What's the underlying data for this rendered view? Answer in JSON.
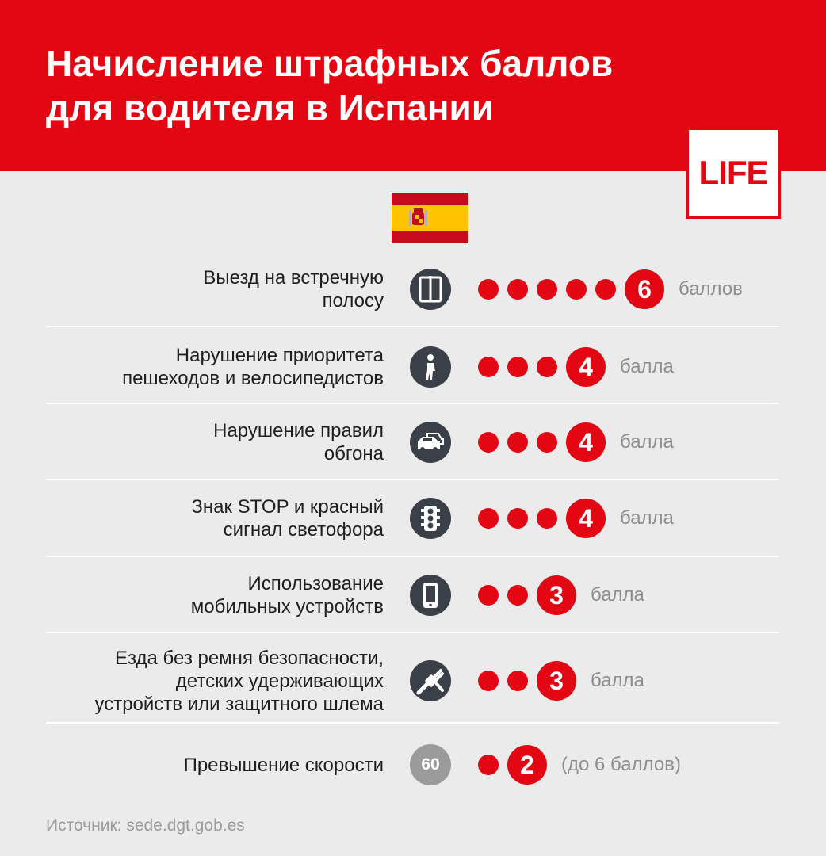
{
  "title_line1": "Начисление штрафных баллов",
  "title_line2": "для водителя в Испании",
  "logo": "LIFE",
  "colors": {
    "accent": "#e30613",
    "background": "#ebebeb",
    "icon": "#3b3f47"
  },
  "rows": [
    {
      "lines": [
        "Выезд на встречную",
        "полосу"
      ],
      "icon": "road-lane-icon",
      "points": 6,
      "badge": "6",
      "unit": "баллов"
    },
    {
      "lines": [
        "Нарушение приоритета",
        "пешеходов и велосипедистов"
      ],
      "icon": "pedestrian-icon",
      "points": 4,
      "badge": "4",
      "unit": "балла"
    },
    {
      "lines": [
        "Нарушение правил",
        "обгона"
      ],
      "icon": "overtaking-cars-icon",
      "points": 4,
      "badge": "4",
      "unit": "балла"
    },
    {
      "lines": [
        "Знак STOP и красный",
        "сигнал светофора"
      ],
      "icon": "traffic-light-icon",
      "points": 4,
      "badge": "4",
      "unit": "балла"
    },
    {
      "lines": [
        "Использование",
        "мобильных устройств"
      ],
      "icon": "mobile-phone-icon",
      "points": 3,
      "badge": "3",
      "unit": "балла"
    },
    {
      "lines": [
        "Езда без ремня безопасности,",
        "детских удерживающих",
        "устройств или защитного шлема"
      ],
      "icon": "seat-belt-icon",
      "points": 3,
      "badge": "3",
      "unit": "балла"
    },
    {
      "lines": [
        "Превышение скорости"
      ],
      "icon": "speed-limit-icon",
      "icon_text": "60",
      "points": 2,
      "badge": "2",
      "unit": "(до 6 баллов)"
    }
  ],
  "source": "Источник: sede.dgt.gob.es"
}
